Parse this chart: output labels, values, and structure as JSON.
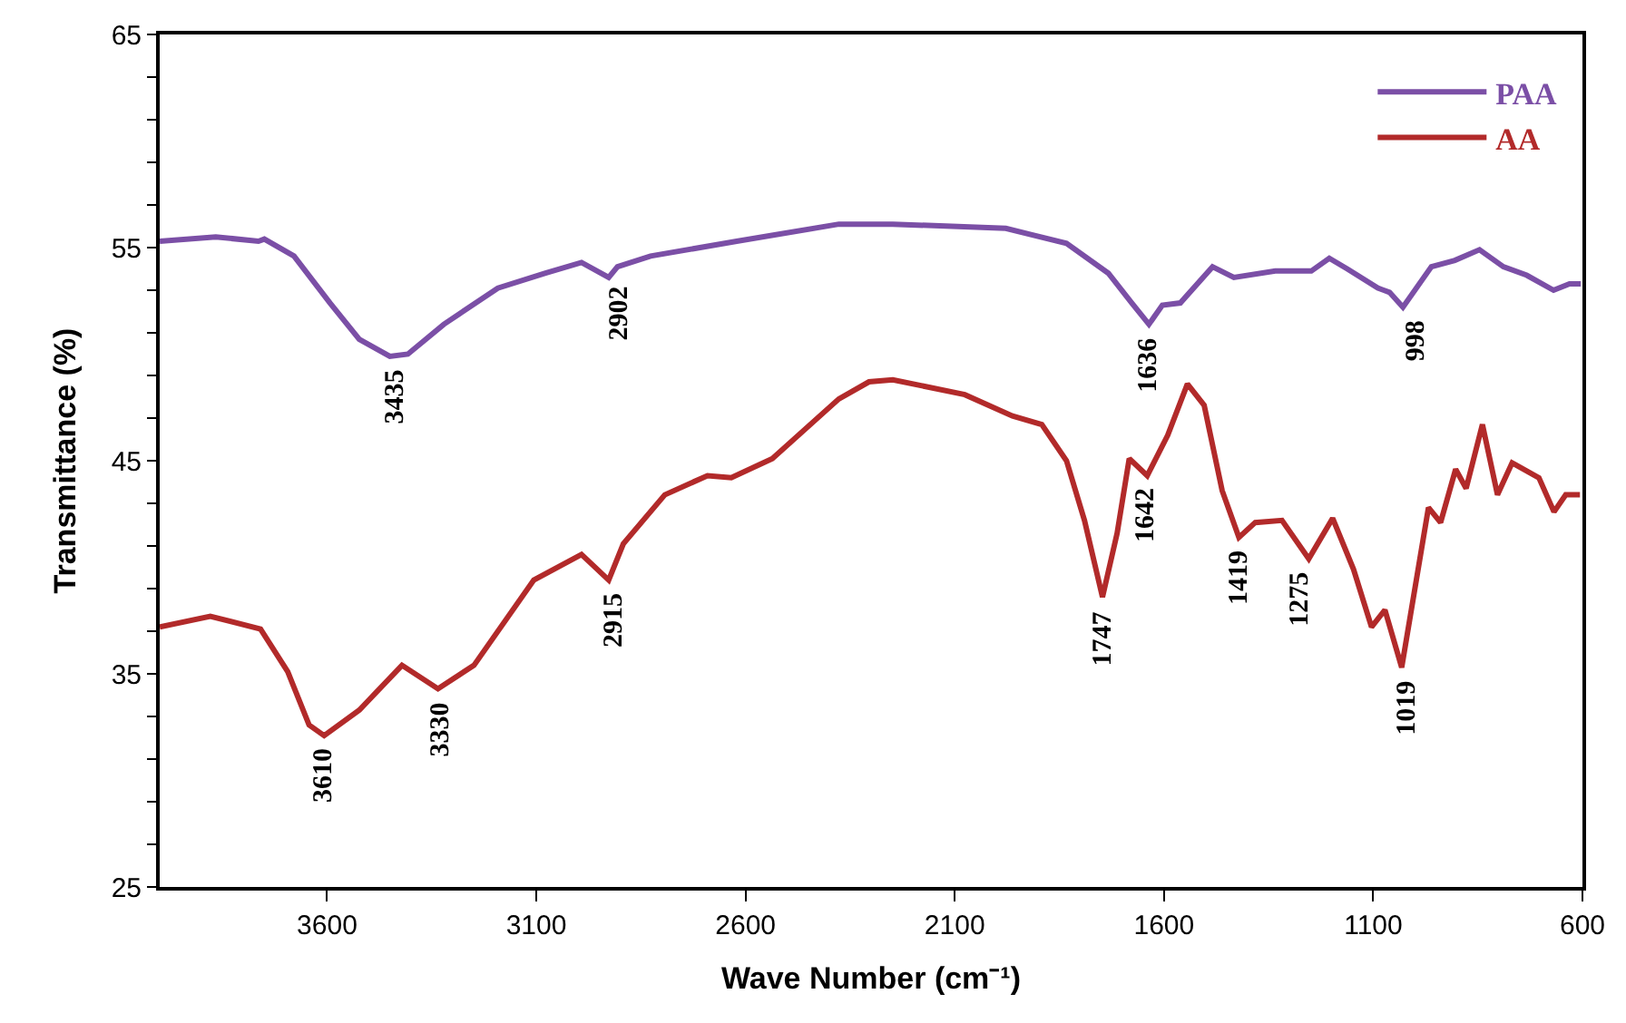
{
  "chart_data": {
    "type": "line",
    "xlabel": "Wave Number (cm⁻¹)",
    "ylabel": "Transmittance (%)",
    "xlim": [
      4000,
      600
    ],
    "xticks": [
      3600,
      3100,
      2600,
      2100,
      1600,
      1100,
      600
    ],
    "ylim": [
      25,
      65
    ],
    "yticks": [
      25,
      {
        "value": 27,
        "label": null
      },
      {
        "value": 29,
        "label": null
      },
      {
        "value": 31,
        "label": null
      },
      {
        "value": 33,
        "label": null
      },
      35,
      {
        "value": 37,
        "label": null
      },
      {
        "value": 39,
        "label": null
      },
      {
        "value": 41,
        "label": null
      },
      {
        "value": 43,
        "label": null
      },
      45,
      {
        "value": 47,
        "label": null
      },
      {
        "value": 49,
        "label": null
      },
      {
        "value": 51,
        "label": null
      },
      {
        "value": 53,
        "label": null
      },
      55,
      {
        "value": 57,
        "label": null
      },
      {
        "value": 59,
        "label": null
      },
      {
        "value": 61,
        "label": null
      },
      {
        "value": 63,
        "label": null
      },
      65
    ],
    "legend": "top right",
    "marker": "none",
    "line_style": "solid",
    "series": [
      {
        "name": "PAA",
        "color": "#7b4fa6",
        "x": [
          4000,
          3866,
          3764,
          3750,
          3679,
          3593,
          3523,
          3450,
          3407,
          3321,
          3192,
          3078,
          2992,
          2927,
          2906,
          2827,
          2621,
          2377,
          2248,
          1978,
          1833,
          1733,
          1677,
          1636,
          1604,
          1561,
          1484,
          1433,
          1334,
          1248,
          1205,
          1162,
          1089,
          1061,
          1029,
          961,
          905,
          846,
          789,
          733,
          669,
          631,
          604
        ],
        "values": [
          55.3,
          55.5,
          55.3,
          55.4,
          54.6,
          52.4,
          50.7,
          49.9,
          50.0,
          51.4,
          53.1,
          53.8,
          54.3,
          53.6,
          54.1,
          54.6,
          55.3,
          56.1,
          56.1,
          55.9,
          55.2,
          53.8,
          52.4,
          51.4,
          52.3,
          52.4,
          54.1,
          53.6,
          53.9,
          53.9,
          54.5,
          54.0,
          53.1,
          52.9,
          52.2,
          54.1,
          54.4,
          54.9,
          54.1,
          53.7,
          53.0,
          53.3,
          53.3
        ]
      },
      {
        "name": "AA",
        "color": "#b22a2a",
        "x": [
          4000,
          3879,
          3759,
          3694,
          3643,
          3607,
          3523,
          3421,
          3335,
          3249,
          3106,
          2992,
          2927,
          2892,
          2793,
          2691,
          2634,
          2536,
          2377,
          2305,
          2248,
          2076,
          1962,
          1892,
          1833,
          1790,
          1747,
          1712,
          1683,
          1640,
          1591,
          1544,
          1504,
          1461,
          1421,
          1382,
          1318,
          1254,
          1197,
          1147,
          1104,
          1072,
          1032,
          968,
          939,
          903,
          878,
          839,
          803,
          768,
          704,
          668,
          640,
          606
        ],
        "values": [
          37.2,
          37.7,
          37.1,
          35.1,
          32.6,
          32.1,
          33.3,
          35.4,
          34.3,
          35.4,
          39.4,
          40.6,
          39.4,
          41.1,
          43.4,
          44.3,
          44.2,
          45.1,
          47.9,
          48.7,
          48.8,
          48.1,
          47.1,
          46.7,
          45.0,
          42.2,
          38.6,
          41.6,
          45.1,
          44.3,
          46.2,
          48.6,
          47.6,
          43.6,
          41.4,
          42.1,
          42.2,
          40.4,
          42.3,
          39.9,
          37.2,
          38.0,
          35.3,
          42.8,
          42.1,
          44.6,
          43.7,
          46.7,
          43.4,
          44.9,
          44.2,
          42.6,
          43.4,
          43.4
        ]
      }
    ],
    "annotations": [
      {
        "text": "3435",
        "x": 3435,
        "y": 49.9
      },
      {
        "text": "2902",
        "x": 2902,
        "y": 53.8
      },
      {
        "text": "1636",
        "x": 1636,
        "y": 51.4
      },
      {
        "text": "998",
        "x": 998,
        "y": 52.2
      },
      {
        "text": "3610",
        "x": 3610,
        "y": 32.1
      },
      {
        "text": "3330",
        "x": 3330,
        "y": 34.3
      },
      {
        "text": "2915",
        "x": 2915,
        "y": 39.4
      },
      {
        "text": "1747",
        "x": 1747,
        "y": 38.6
      },
      {
        "text": "1642",
        "x": 1642,
        "y": 44.3
      },
      {
        "text": "1419",
        "x": 1419,
        "y": 41.4
      },
      {
        "text": "1275",
        "x": 1275,
        "y": 40.4
      },
      {
        "text": "1019",
        "x": 1019,
        "y": 35.3
      }
    ]
  }
}
